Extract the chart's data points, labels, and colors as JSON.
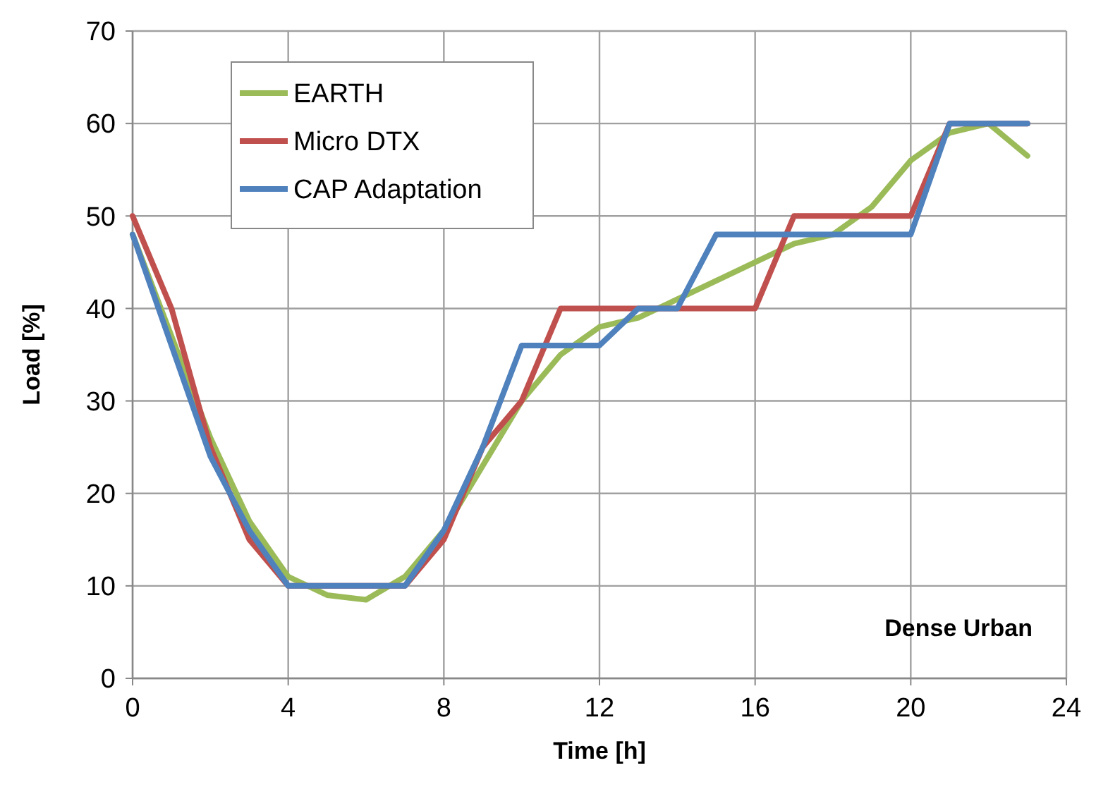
{
  "chart_data": {
    "type": "line",
    "xlabel": "Time [h]",
    "ylabel": "Load [%]",
    "x": [
      0,
      1,
      2,
      3,
      4,
      5,
      6,
      7,
      8,
      9,
      10,
      11,
      12,
      13,
      14,
      15,
      16,
      17,
      18,
      19,
      20,
      21,
      22,
      23
    ],
    "series": [
      {
        "name": "EARTH",
        "color": "#9bbb59",
        "values": [
          48,
          37,
          26,
          17,
          11,
          9,
          8.5,
          11,
          16,
          23,
          30,
          35,
          38,
          39,
          41,
          43,
          45,
          47,
          48,
          51,
          56,
          59,
          60,
          56.5
        ]
      },
      {
        "name": "Micro DTX",
        "color": "#c0504d",
        "values": [
          50,
          40,
          25,
          15,
          10,
          10,
          10,
          10,
          15,
          25,
          30,
          40,
          40,
          40,
          40,
          40,
          40,
          50,
          50,
          50,
          50,
          60,
          60,
          60
        ]
      },
      {
        "name": "CAP Adaptation",
        "color": "#4f81bd",
        "values": [
          48,
          36,
          24,
          16,
          10,
          10,
          10,
          10,
          16,
          25,
          36,
          36,
          36,
          40,
          40,
          48,
          48,
          48,
          48,
          48,
          48,
          60,
          60,
          60
        ]
      }
    ],
    "xlim": [
      0,
      24
    ],
    "xticks": [
      0,
      4,
      8,
      12,
      16,
      20,
      24
    ],
    "ylim": [
      0,
      70
    ],
    "yticks": [
      0,
      10,
      20,
      30,
      40,
      50,
      60,
      70
    ],
    "grid": true,
    "legend": "top left",
    "marker": "none",
    "line_style": "solid",
    "annotations": [
      "Dense Urban"
    ]
  }
}
